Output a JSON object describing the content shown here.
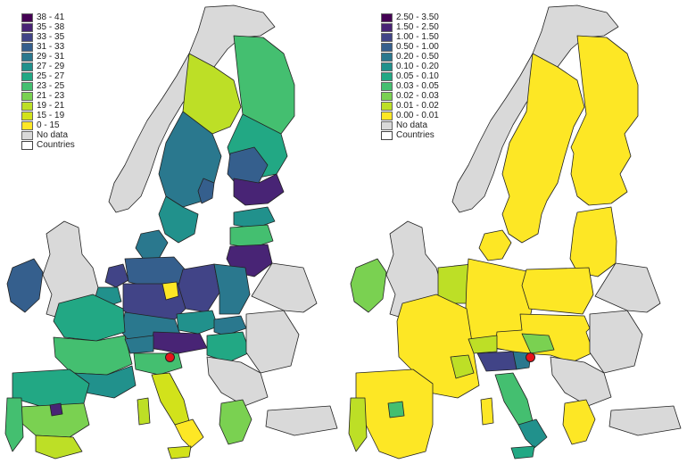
{
  "maps": [
    {
      "legend": [
        {
          "label": "38 - 41",
          "color": "#440154"
        },
        {
          "label": "35 - 38",
          "color": "#482475"
        },
        {
          "label": "33 - 35",
          "color": "#414487"
        },
        {
          "label": "31 - 33",
          "color": "#355f8d"
        },
        {
          "label": "29 - 31",
          "color": "#2a788e"
        },
        {
          "label": "27 - 29",
          "color": "#21918c"
        },
        {
          "label": "25 - 27",
          "color": "#22a884"
        },
        {
          "label": "23 - 25",
          "color": "#44bf70"
        },
        {
          "label": "21 - 23",
          "color": "#7ad151"
        },
        {
          "label": "19 - 21",
          "color": "#bddf26"
        },
        {
          "label": "15 - 19",
          "color": "#d2e21b"
        },
        {
          "label": "0 - 15",
          "color": "#fde725"
        },
        {
          "label": "No data",
          "color": "#d9d9d9"
        },
        {
          "label": "Countries",
          "color": "outline"
        }
      ]
    },
    {
      "legend": [
        {
          "label": "2.50 - 3.50",
          "color": "#440154"
        },
        {
          "label": "1.50 - 2.50",
          "color": "#482475"
        },
        {
          "label": "1.00 - 1.50",
          "color": "#414487"
        },
        {
          "label": "0.50 - 1.00",
          "color": "#355f8d"
        },
        {
          "label": "0.20 - 0.50",
          "color": "#2a788e"
        },
        {
          "label": "0.10 - 0.20",
          "color": "#21918c"
        },
        {
          "label": "0.05 - 0.10",
          "color": "#22a884"
        },
        {
          "label": "0.03 - 0.05",
          "color": "#44bf70"
        },
        {
          "label": "0.02 - 0.03",
          "color": "#7ad151"
        },
        {
          "label": "0.01 - 0.02",
          "color": "#bddf26"
        },
        {
          "label": "0.00 - 0.01",
          "color": "#fde725"
        },
        {
          "label": "No data",
          "color": "#d9d9d9"
        },
        {
          "label": "Countries",
          "color": "outline"
        }
      ]
    }
  ]
}
